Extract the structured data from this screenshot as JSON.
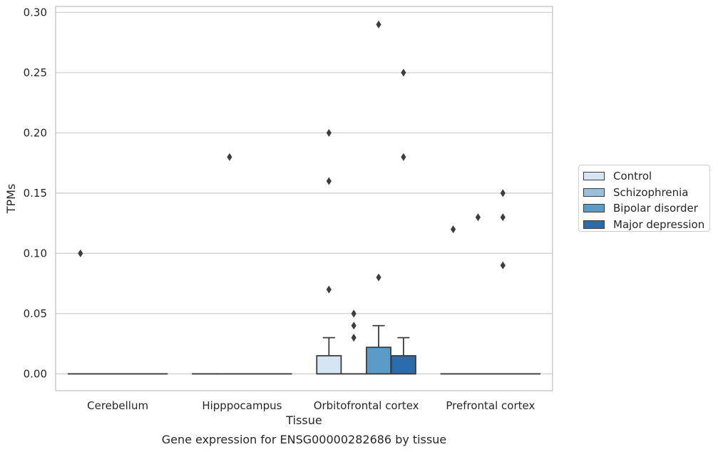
{
  "chart_data": {
    "type": "box",
    "title": "",
    "caption": "Gene expression for ENSG00000282686 by tissue",
    "xlabel": "Tissue",
    "ylabel": "TPMs",
    "ylim": [
      -0.014,
      0.305
    ],
    "yticks": [
      0.0,
      0.05,
      0.1,
      0.15,
      0.2,
      0.25,
      0.3
    ],
    "ytick_labels": [
      "0.00",
      "0.05",
      "0.10",
      "0.15",
      "0.20",
      "0.25",
      "0.30"
    ],
    "grid": "horizontal",
    "legend_position": "right",
    "categories": [
      "Cerebellum",
      "Hipppocampus",
      "Orbitofrontal cortex",
      "Prefrontal cortex"
    ],
    "series": [
      {
        "name": "Control",
        "color": "#d6e5f3",
        "boxes": [
          {
            "q1": 0,
            "median": 0,
            "q3": 0,
            "whisker_low": 0,
            "whisker_high": 0,
            "outliers": [
              0.1
            ]
          },
          {
            "q1": 0,
            "median": 0,
            "q3": 0,
            "whisker_low": 0,
            "whisker_high": 0,
            "outliers": []
          },
          {
            "q1": 0,
            "median": 0,
            "q3": 0.015,
            "whisker_low": 0,
            "whisker_high": 0.03,
            "outliers": [
              0.07,
              0.16,
              0.2
            ]
          },
          {
            "q1": 0,
            "median": 0,
            "q3": 0,
            "whisker_low": 0,
            "whisker_high": 0,
            "outliers": [
              0.12
            ]
          }
        ]
      },
      {
        "name": "Schizophrenia",
        "color": "#99c1dd",
        "boxes": [
          {
            "q1": 0,
            "median": 0,
            "q3": 0,
            "whisker_low": 0,
            "whisker_high": 0,
            "outliers": []
          },
          {
            "q1": 0,
            "median": 0,
            "q3": 0,
            "whisker_low": 0,
            "whisker_high": 0,
            "outliers": [
              0.18
            ]
          },
          {
            "q1": 0,
            "median": 0,
            "q3": 0,
            "whisker_low": 0,
            "whisker_high": 0,
            "outliers": [
              0.03,
              0.04,
              0.05
            ]
          },
          {
            "q1": 0,
            "median": 0,
            "q3": 0,
            "whisker_low": 0,
            "whisker_high": 0,
            "outliers": [
              0.13
            ]
          }
        ]
      },
      {
        "name": "Bipolar disorder",
        "color": "#5a9bc8",
        "boxes": [
          {
            "q1": 0,
            "median": 0,
            "q3": 0,
            "whisker_low": 0,
            "whisker_high": 0,
            "outliers": []
          },
          {
            "q1": 0,
            "median": 0,
            "q3": 0,
            "whisker_low": 0,
            "whisker_high": 0,
            "outliers": []
          },
          {
            "q1": 0,
            "median": 0,
            "q3": 0.022,
            "whisker_low": 0,
            "whisker_high": 0.04,
            "outliers": [
              0.08,
              0.29
            ]
          },
          {
            "q1": 0,
            "median": 0,
            "q3": 0,
            "whisker_low": 0,
            "whisker_high": 0,
            "outliers": [
              0.09,
              0.13,
              0.15
            ]
          }
        ]
      },
      {
        "name": "Major depression",
        "color": "#2a6bab",
        "boxes": [
          {
            "q1": 0,
            "median": 0,
            "q3": 0,
            "whisker_low": 0,
            "whisker_high": 0,
            "outliers": []
          },
          {
            "q1": 0,
            "median": 0,
            "q3": 0,
            "whisker_low": 0,
            "whisker_high": 0,
            "outliers": []
          },
          {
            "q1": 0,
            "median": 0,
            "q3": 0.015,
            "whisker_low": 0,
            "whisker_high": 0.03,
            "outliers": [
              0.18,
              0.25
            ]
          },
          {
            "q1": 0,
            "median": 0,
            "q3": 0,
            "whisker_low": 0,
            "whisker_high": 0,
            "outliers": []
          }
        ]
      }
    ]
  }
}
